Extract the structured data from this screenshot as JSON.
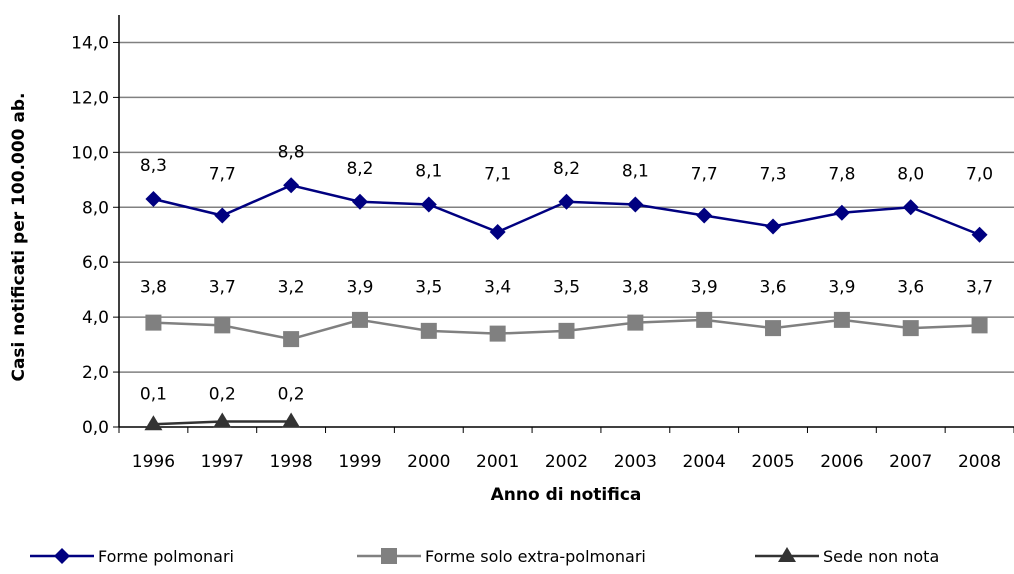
{
  "chart_data": {
    "type": "line",
    "title": "",
    "xlabel": "Anno di notifica",
    "ylabel": "Casi notificati per 100.000 ab.",
    "ylim": [
      0,
      15
    ],
    "y_ticks": [
      0,
      2,
      4,
      6,
      8,
      10,
      12,
      14
    ],
    "y_tick_labels": [
      "0,0",
      "2,0",
      "4,0",
      "6,0",
      "8,0",
      "10,0",
      "12,0",
      "14,0"
    ],
    "grid": true,
    "legend_position": "bottom",
    "categories": [
      "1996",
      "1997",
      "1998",
      "1999",
      "2000",
      "2001",
      "2002",
      "2003",
      "2004",
      "2005",
      "2006",
      "2007",
      "2008"
    ],
    "series": [
      {
        "name": "Forme polmonari",
        "color": "#000080",
        "marker": "diamond",
        "values": [
          8.3,
          7.7,
          8.8,
          8.2,
          8.1,
          7.1,
          8.2,
          8.1,
          7.7,
          7.3,
          7.8,
          8.0,
          7.0
        ],
        "labels": [
          "8,3",
          "7,7",
          "8,8",
          "8,2",
          "8,1",
          "7,1",
          "8,2",
          "8,1",
          "7,7",
          "7,3",
          "7,8",
          "8,0",
          "7,0"
        ]
      },
      {
        "name": "Forme solo extra-polmonari",
        "color": "#808080",
        "marker": "square",
        "values": [
          3.8,
          3.7,
          3.2,
          3.9,
          3.5,
          3.4,
          3.5,
          3.8,
          3.9,
          3.6,
          3.9,
          3.6,
          3.7
        ],
        "labels": [
          "3,8",
          "3,7",
          "3,2",
          "3,9",
          "3,5",
          "3,4",
          "3,5",
          "3,8",
          "3,9",
          "3,6",
          "3,9",
          "3,6",
          "3,7"
        ]
      },
      {
        "name": "Sede non nota",
        "color": "#333333",
        "marker": "triangle",
        "values": [
          0.1,
          0.2,
          0.2,
          null,
          null,
          null,
          null,
          null,
          null,
          null,
          null,
          null,
          null
        ],
        "labels": [
          "0,1",
          "0,2",
          "0,2",
          null,
          null,
          null,
          null,
          null,
          null,
          null,
          null,
          null,
          null
        ]
      }
    ]
  }
}
